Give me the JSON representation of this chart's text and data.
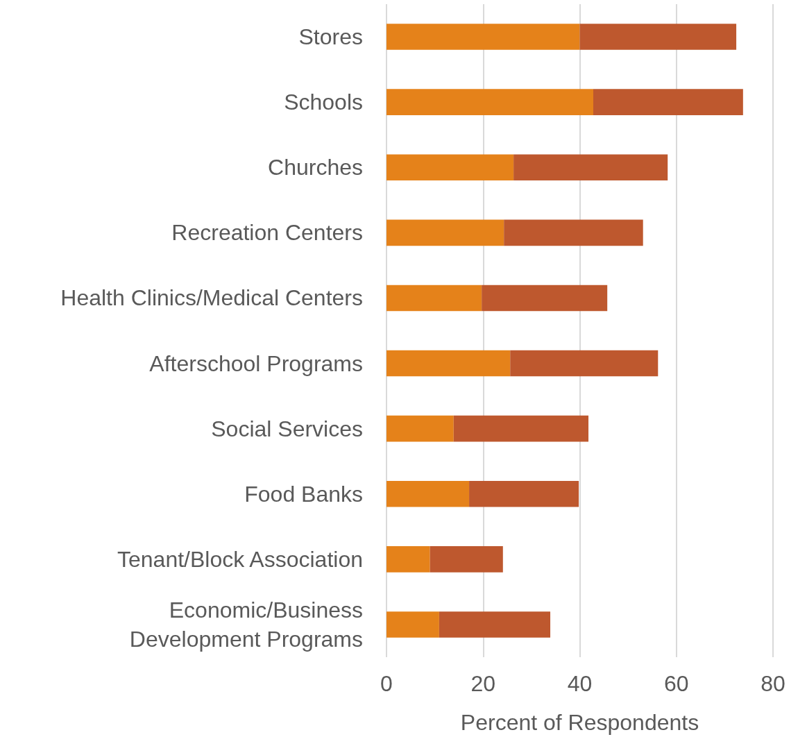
{
  "chart_data": {
    "type": "bar",
    "orientation": "horizontal",
    "stacked": true,
    "xlabel": "Percent of Respondents",
    "categories": [
      "Stores",
      "Schools",
      "Churches",
      "Recreation Centers",
      "Health Clinics/Medical Centers",
      "Afterschool Programs",
      "Social Services",
      "Food Banks",
      "Tenant/Block Association",
      "Economic/Business\nDevelopment Programs"
    ],
    "series": [
      {
        "color": "#e5821a",
        "values": [
          40,
          42.8,
          26.3,
          24.3,
          19.7,
          25.6,
          13.9,
          17.1,
          9.0,
          10.9
        ]
      },
      {
        "color": "#be582e",
        "values": [
          32.4,
          31,
          31.9,
          28.8,
          26,
          30.6,
          27.9,
          22.7,
          15.1,
          23
        ]
      }
    ],
    "xlim": [
      0,
      80
    ],
    "xticks": [
      0,
      20,
      40,
      60,
      80
    ],
    "grid": "x"
  }
}
